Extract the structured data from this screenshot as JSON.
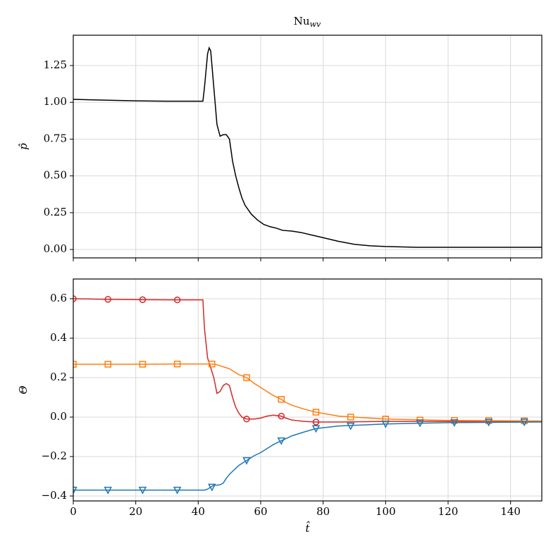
{
  "chart_data": [
    {
      "type": "line",
      "title": "Nu",
      "title_sub": "wv",
      "ylabel": "p̂",
      "x": [
        0,
        10,
        20,
        30,
        41.5,
        42,
        43,
        43.5,
        44,
        45,
        46,
        47,
        48,
        49,
        50,
        51,
        52,
        53,
        54,
        55,
        57,
        59,
        61,
        63,
        65,
        67,
        70,
        73,
        76,
        80,
        85,
        90,
        95,
        100,
        110,
        120,
        150
      ],
      "series": [
        {
          "color": "#000000",
          "values": [
            1.02,
            1.015,
            1.01,
            1.008,
            1.008,
            1.1,
            1.33,
            1.37,
            1.35,
            1.1,
            0.85,
            0.77,
            0.78,
            0.78,
            0.75,
            0.6,
            0.5,
            0.42,
            0.35,
            0.3,
            0.24,
            0.2,
            0.17,
            0.155,
            0.145,
            0.13,
            0.125,
            0.115,
            0.1,
            0.08,
            0.055,
            0.035,
            0.025,
            0.02,
            0.015,
            0.015,
            0.015
          ]
        }
      ],
      "xlim": [
        0,
        150
      ],
      "xticks": [
        0,
        20,
        40,
        60,
        80,
        100,
        120,
        140
      ],
      "xtick_labels": false,
      "ylim": [
        -0.057,
        1.456
      ],
      "yticks": [
        {
          "value": 0,
          "label": "0.00"
        },
        0.25,
        {
          "value": 0.5,
          "label": "0.50"
        },
        0.75,
        {
          "value": 1,
          "label": "1.00"
        },
        1.25
      ],
      "grid": true
    },
    {
      "type": "line",
      "xlabel": "t̂",
      "ylabel": "Θ",
      "x": [
        0,
        11.1,
        22.2,
        33.3,
        41.5,
        42,
        43,
        44,
        45,
        46,
        47,
        48,
        49,
        50,
        51,
        52,
        53,
        54,
        55.5,
        58,
        60,
        62,
        64,
        66.6,
        68,
        70,
        74,
        77.7,
        85,
        100,
        120,
        150
      ],
      "series": [
        {
          "color": "#d62728",
          "marker": "circle",
          "values": [
            0.6,
            0.597,
            0.595,
            0.594,
            0.594,
            0.45,
            0.3,
            0.25,
            0.2,
            0.12,
            0.13,
            0.16,
            0.17,
            0.16,
            0.1,
            0.05,
            0.02,
            0.0,
            -0.01,
            -0.01,
            -0.005,
            0.005,
            0.01,
            0.005,
            -0.005,
            -0.015,
            -0.022,
            -0.025,
            -0.025,
            -0.022,
            -0.022,
            -0.022
          ],
          "marker_x": [
            0,
            11.1,
            22.2,
            33.3,
            55.5,
            66.6,
            77.7
          ],
          "marker_values": [
            0.6,
            0.597,
            0.595,
            0.594,
            -0.01,
            0.005,
            -0.025
          ]
        },
        {
          "color": "#ff7f0e",
          "marker": "square",
          "values": [
            0.268,
            0.268,
            0.268,
            0.269,
            0.269,
            0.269,
            0.269,
            0.269,
            0.268,
            0.265,
            0.26,
            0.255,
            0.25,
            0.245,
            0.235,
            0.225,
            0.215,
            0.21,
            0.2,
            0.17,
            0.15,
            0.13,
            0.11,
            0.09,
            0.075,
            0.06,
            0.04,
            0.025,
            0.005,
            -0.01,
            -0.017,
            -0.02
          ],
          "marker_x": [
            0,
            11.1,
            22.2,
            33.3,
            44.4,
            55.5,
            66.6,
            77.7,
            88.8,
            100,
            111,
            122,
            133,
            144.4
          ],
          "marker_values": [
            0.268,
            0.268,
            0.268,
            0.269,
            0.269,
            0.2,
            0.09,
            0.025,
            0.0,
            -0.01,
            -0.015,
            -0.017,
            -0.018,
            -0.019
          ]
        },
        {
          "color": "#1f77b4",
          "marker": "triangle",
          "values": [
            -0.37,
            -0.37,
            -0.37,
            -0.37,
            -0.37,
            -0.37,
            -0.365,
            -0.355,
            -0.345,
            -0.345,
            -0.343,
            -0.335,
            -0.31,
            -0.29,
            -0.275,
            -0.26,
            -0.245,
            -0.235,
            -0.22,
            -0.195,
            -0.18,
            -0.16,
            -0.14,
            -0.12,
            -0.11,
            -0.095,
            -0.075,
            -0.058,
            -0.045,
            -0.035,
            -0.028,
            -0.025
          ],
          "marker_x": [
            0,
            11.1,
            22.2,
            33.3,
            44.4,
            55.5,
            66.6,
            77.7,
            88.8,
            100,
            111,
            122,
            133,
            144.4
          ],
          "marker_values": [
            -0.37,
            -0.37,
            -0.37,
            -0.37,
            -0.355,
            -0.22,
            -0.12,
            -0.058,
            -0.045,
            -0.035,
            -0.03,
            -0.028,
            -0.026,
            -0.025
          ]
        }
      ],
      "xlim": [
        0,
        150
      ],
      "xticks": [
        0,
        20,
        40,
        60,
        80,
        100,
        120,
        140
      ],
      "ylim": [
        -0.425,
        0.7
      ],
      "yticks": [
        {
          "value": -0.4,
          "label": "−0.4"
        },
        {
          "value": -0.2,
          "label": "−0.2"
        },
        {
          "value": 0,
          "label": "0.0"
        },
        0.2,
        0.4,
        0.6
      ],
      "grid": true
    }
  ]
}
